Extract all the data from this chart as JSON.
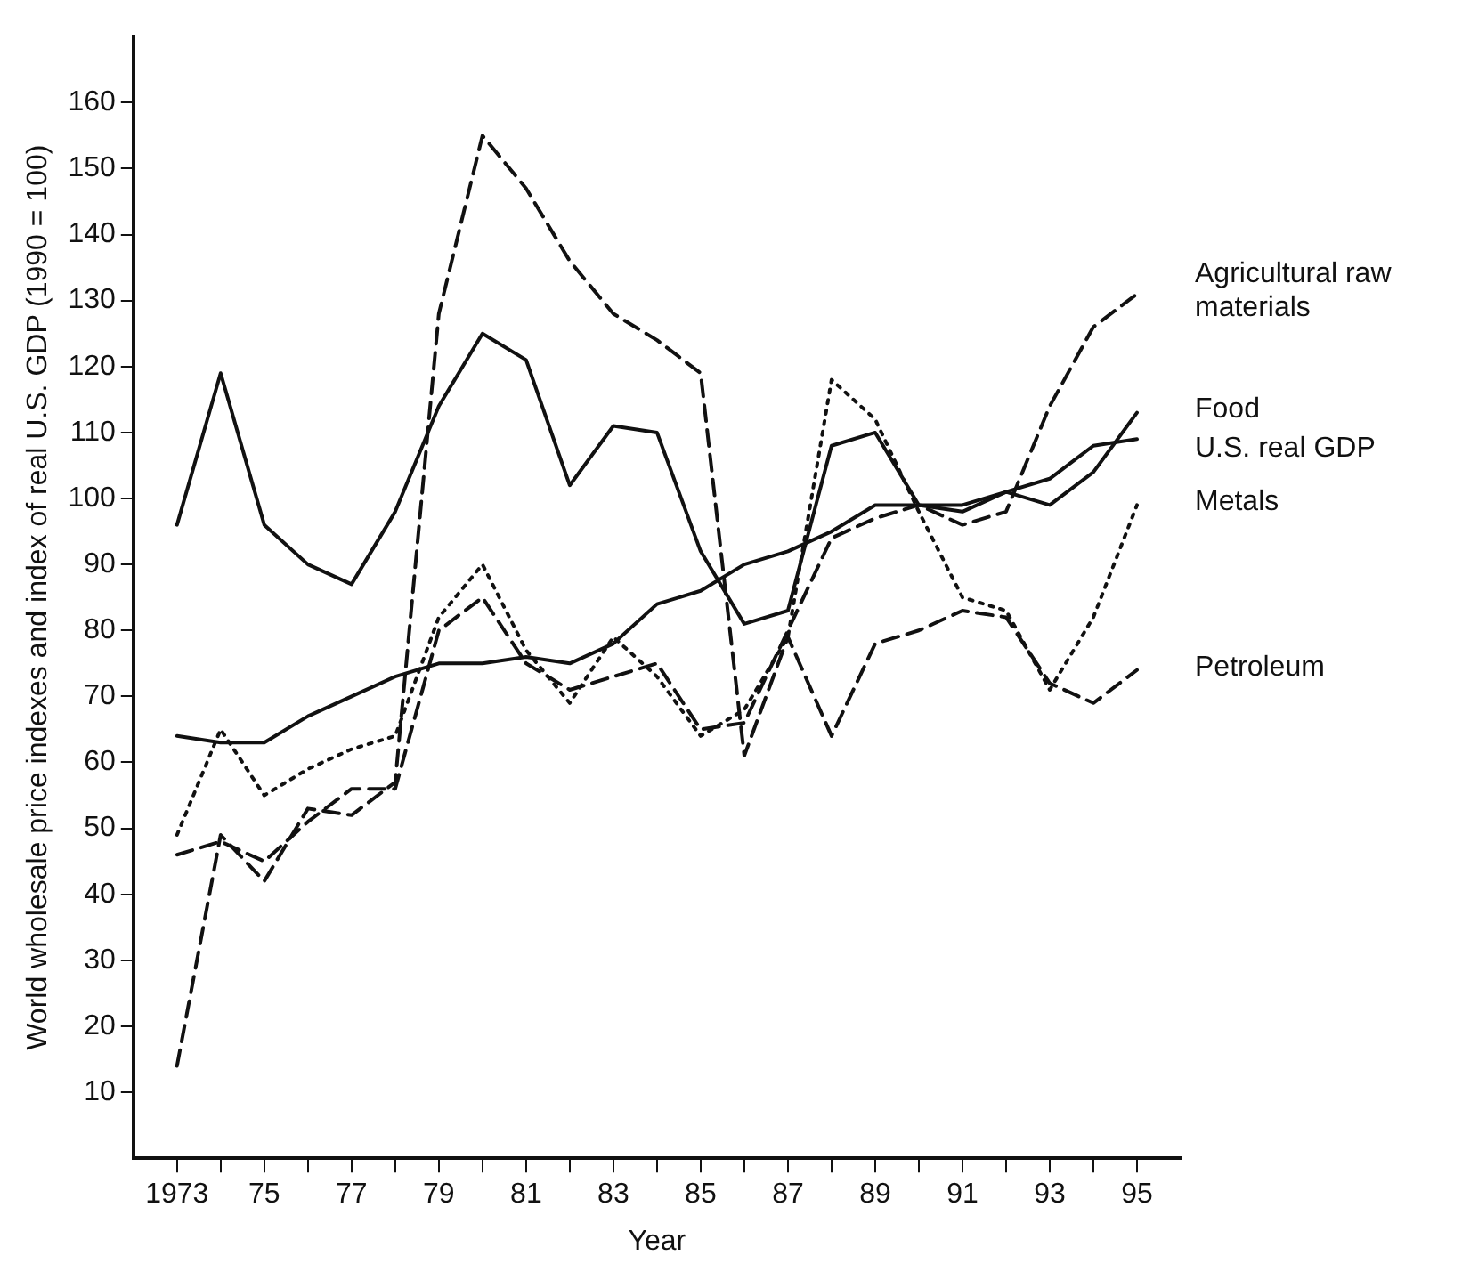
{
  "chart_data": {
    "type": "line",
    "xlabel": "Year",
    "ylabel": "World wholesale price indexes and index of real U.S. GDP (1990 = 100)",
    "x": [
      1973,
      1974,
      1975,
      1976,
      1977,
      1978,
      1979,
      1980,
      1981,
      1982,
      1983,
      1984,
      1985,
      1986,
      1987,
      1988,
      1989,
      1990,
      1991,
      1992,
      1993,
      1994,
      1995
    ],
    "xlim": [
      1972,
      1996
    ],
    "xticks": [
      {
        "value": 1973,
        "label": "1973"
      },
      {
        "value": 1974,
        "label": null
      },
      {
        "value": 1975,
        "label": "75"
      },
      {
        "value": 1976,
        "label": null
      },
      {
        "value": 1977,
        "label": "77"
      },
      {
        "value": 1978,
        "label": null
      },
      {
        "value": 1979,
        "label": "79"
      },
      {
        "value": 1980,
        "label": null
      },
      {
        "value": 1981,
        "label": "81"
      },
      {
        "value": 1982,
        "label": null
      },
      {
        "value": 1983,
        "label": "83"
      },
      {
        "value": 1984,
        "label": null
      },
      {
        "value": 1985,
        "label": "85"
      },
      {
        "value": 1986,
        "label": null
      },
      {
        "value": 1987,
        "label": "87"
      },
      {
        "value": 1988,
        "label": null
      },
      {
        "value": 1989,
        "label": "89"
      },
      {
        "value": 1990,
        "label": null
      },
      {
        "value": 1991,
        "label": "91"
      },
      {
        "value": 1992,
        "label": null
      },
      {
        "value": 1993,
        "label": "93"
      },
      {
        "value": 1994,
        "label": null
      },
      {
        "value": 1995,
        "label": "95"
      }
    ],
    "ylim": [
      0,
      170
    ],
    "yticks": [
      10,
      20,
      30,
      40,
      50,
      60,
      70,
      80,
      90,
      100,
      110,
      120,
      130,
      140,
      150,
      160
    ],
    "grid": false,
    "legend": false,
    "marker": "none",
    "series": [
      {
        "name": "Agricultural raw materials",
        "color": "#111111",
        "line_style": "dashed",
        "values": [
          46,
          48,
          45,
          51,
          56,
          56,
          80,
          85,
          75,
          71,
          73,
          75,
          65,
          66,
          80,
          94,
          97,
          99,
          96,
          98,
          114,
          126,
          131
        ]
      },
      {
        "name": "Food",
        "color": "#111111",
        "line_style": "solid",
        "values": [
          96,
          119,
          96,
          90,
          87,
          98,
          114,
          125,
          121,
          102,
          111,
          110,
          92,
          81,
          83,
          108,
          110,
          99,
          98,
          101,
          99,
          104,
          113
        ]
      },
      {
        "name": "U.S. real GDP",
        "color": "#111111",
        "line_style": "solid",
        "values": [
          64,
          63,
          63,
          67,
          70,
          73,
          75,
          75,
          76,
          75,
          78,
          84,
          86,
          90,
          92,
          95,
          99,
          99,
          99,
          101,
          103,
          108,
          109
        ]
      },
      {
        "name": "Metals",
        "color": "#111111",
        "line_style": "dotted",
        "values": [
          49,
          65,
          55,
          59,
          62,
          64,
          82,
          90,
          77,
          69,
          79,
          73,
          64,
          68,
          79,
          118,
          112,
          98,
          85,
          83,
          71,
          82,
          99
        ]
      },
      {
        "name": "Petroleum",
        "color": "#111111",
        "line_style": "dashed",
        "values": [
          14,
          49,
          42,
          53,
          52,
          57,
          128,
          155,
          147,
          136,
          128,
          124,
          119,
          61,
          79,
          64,
          78,
          80,
          83,
          82,
          72,
          69,
          74
        ]
      }
    ]
  }
}
